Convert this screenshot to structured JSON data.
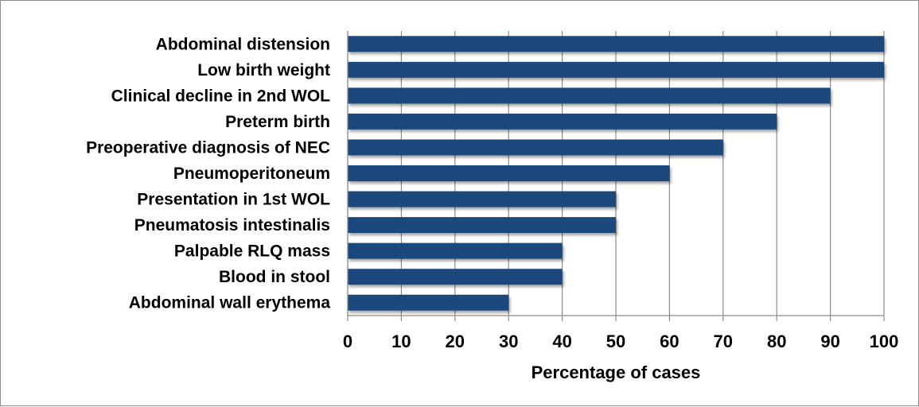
{
  "chart_data": {
    "type": "bar",
    "orientation": "horizontal",
    "categories": [
      "Abdominal distension",
      "Low birth weight",
      "Clinical decline in 2nd WOL",
      "Preterm birth",
      "Preoperative diagnosis of NEC",
      "Pneumoperitoneum",
      "Presentation in 1st WOL",
      "Pneumatosis intestinalis",
      "Palpable RLQ mass",
      "Blood in stool",
      "Abdominal wall erythema"
    ],
    "values": [
      100,
      100,
      90,
      80,
      70,
      60,
      50,
      50,
      40,
      40,
      30
    ],
    "xlabel": "Percentage of cases",
    "xlim": [
      0,
      100
    ],
    "xticks": [
      "0",
      "10",
      "20",
      "30",
      "40",
      "50",
      "60",
      "70",
      "80",
      "90",
      "100"
    ],
    "grid": "vertical",
    "bar_color": "#1f497d",
    "legend": "none"
  }
}
